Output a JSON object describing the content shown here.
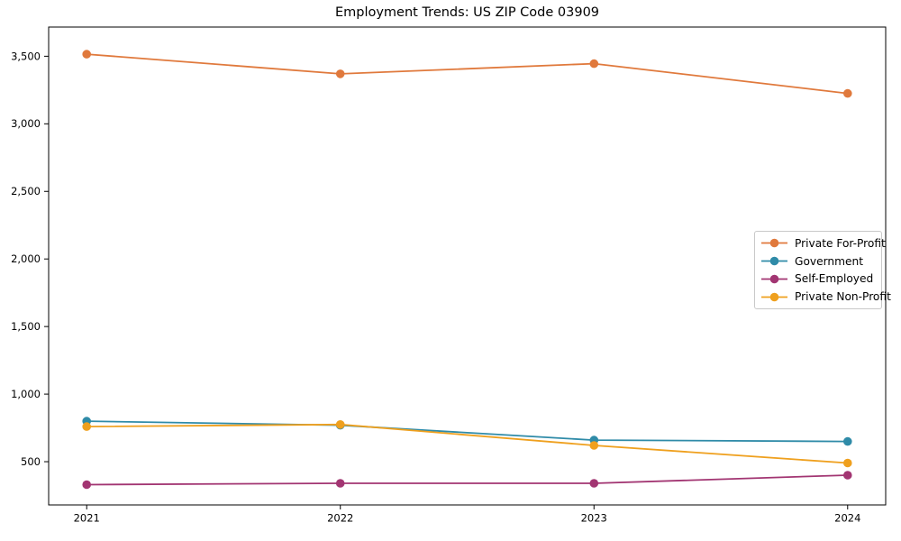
{
  "window": {
    "background": "#ffffff"
  },
  "chart_data": {
    "type": "line",
    "title": "Employment Trends: US ZIP Code 03909",
    "x": [
      2021,
      2022,
      2023,
      2024
    ],
    "x_tick_labels": [
      "2021",
      "2022",
      "2023",
      "2024"
    ],
    "y_ticks": [
      500,
      1000,
      1500,
      2000,
      2500,
      3000,
      3500
    ],
    "y_tick_labels": [
      "500",
      "1,000",
      "1,500",
      "2,000",
      "2,500",
      "3,000",
      "3,500"
    ],
    "xlim": [
      2020.85,
      2024.15
    ],
    "ylim": [
      180,
      3716
    ],
    "grid": false,
    "marker": "circle",
    "axis_color": "#000000",
    "legend": {
      "position": "center-right",
      "background": "#ffffff",
      "border_color": "#c9c9c9",
      "entries": [
        "Private For-Profit",
        "Government",
        "Self-Employed",
        "Private Non-Profit"
      ]
    },
    "series": [
      {
        "name": "Private For-Profit",
        "color": "#e0793c",
        "values": [
          3515,
          3370,
          3445,
          3225
        ]
      },
      {
        "name": "Government",
        "color": "#2f8ba8",
        "values": [
          800,
          770,
          660,
          650
        ]
      },
      {
        "name": "Self-Employed",
        "color": "#a23572",
        "values": [
          330,
          340,
          340,
          400
        ]
      },
      {
        "name": "Private Non-Profit",
        "color": "#efa01e",
        "values": [
          760,
          775,
          620,
          490
        ]
      }
    ]
  }
}
